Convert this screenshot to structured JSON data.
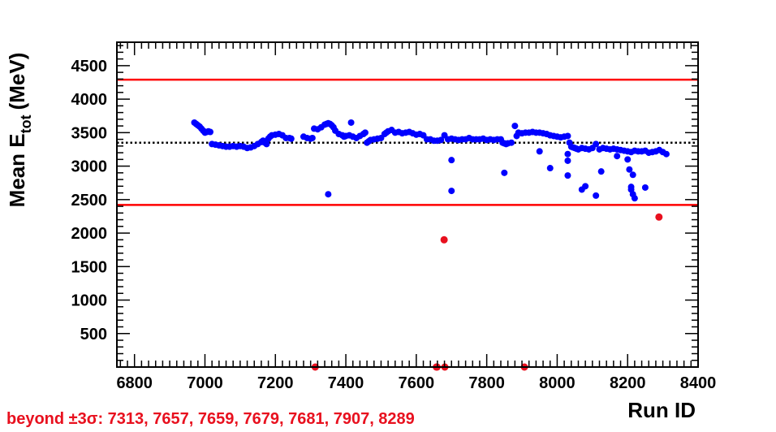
{
  "chart_data": {
    "type": "scatter",
    "title": "",
    "xlabel": "Run ID",
    "ylabel_main": "Mean E",
    "ylabel_sub": "tot",
    "ylabel_unit": "(MeV)",
    "xlim": [
      6750,
      8400
    ],
    "ylim": [
      0,
      4850
    ],
    "x_ticks": [
      6800,
      7000,
      7200,
      7400,
      7600,
      7800,
      8000,
      8200,
      8400
    ],
    "y_ticks": [
      500,
      1000,
      1500,
      2000,
      2500,
      3000,
      3500,
      4000,
      4500
    ],
    "grid": false,
    "colors": {
      "inlier": "#0000ff",
      "outlier": "#e8101e",
      "band": "#ff0000",
      "mean": "#000000",
      "footnote": "#e8101e"
    },
    "reference_lines": [
      {
        "kind": "upper-3sigma",
        "y": 4290,
        "style": "solid"
      },
      {
        "kind": "mean",
        "y": 3350,
        "style": "dotted"
      },
      {
        "kind": "lower-3sigma",
        "y": 2420,
        "style": "solid"
      }
    ],
    "series": [
      {
        "points": [
          [
            6970,
            3650
          ],
          [
            6975,
            3630
          ],
          [
            6980,
            3610
          ],
          [
            6985,
            3590
          ],
          [
            6990,
            3560
          ],
          [
            6995,
            3530
          ],
          [
            7000,
            3500
          ],
          [
            7005,
            3510
          ],
          [
            7010,
            3520
          ],
          [
            7015,
            3510
          ],
          [
            7020,
            3330
          ],
          [
            7030,
            3320
          ],
          [
            7040,
            3310
          ],
          [
            7050,
            3300
          ],
          [
            7060,
            3290
          ],
          [
            7070,
            3290
          ],
          [
            7080,
            3300
          ],
          [
            7090,
            3290
          ],
          [
            7100,
            3300
          ],
          [
            7110,
            3290
          ],
          [
            7120,
            3270
          ],
          [
            7130,
            3280
          ],
          [
            7140,
            3300
          ],
          [
            7150,
            3330
          ],
          [
            7160,
            3360
          ],
          [
            7165,
            3380
          ],
          [
            7170,
            3350
          ],
          [
            7175,
            3330
          ],
          [
            7180,
            3410
          ],
          [
            7185,
            3440
          ],
          [
            7190,
            3460
          ],
          [
            7200,
            3470
          ],
          [
            7210,
            3480
          ],
          [
            7220,
            3460
          ],
          [
            7230,
            3420
          ],
          [
            7240,
            3420
          ],
          [
            7245,
            3410
          ],
          [
            7280,
            3440
          ],
          [
            7290,
            3420
          ],
          [
            7300,
            3410
          ],
          [
            7305,
            3420
          ],
          [
            7310,
            3560
          ],
          [
            7320,
            3550
          ],
          [
            7330,
            3580
          ],
          [
            7340,
            3620
          ],
          [
            7345,
            3630
          ],
          [
            7350,
            3640
          ],
          [
            7355,
            3630
          ],
          [
            7360,
            3610
          ],
          [
            7365,
            3580
          ],
          [
            7370,
            3530
          ],
          [
            7380,
            3480
          ],
          [
            7390,
            3460
          ],
          [
            7395,
            3440
          ],
          [
            7400,
            3450
          ],
          [
            7410,
            3460
          ],
          [
            7415,
            3650
          ],
          [
            7420,
            3440
          ],
          [
            7430,
            3420
          ],
          [
            7440,
            3450
          ],
          [
            7450,
            3480
          ],
          [
            7455,
            3500
          ],
          [
            7460,
            3350
          ],
          [
            7465,
            3370
          ],
          [
            7470,
            3390
          ],
          [
            7480,
            3400
          ],
          [
            7490,
            3410
          ],
          [
            7500,
            3420
          ],
          [
            7510,
            3480
          ],
          [
            7515,
            3500
          ],
          [
            7520,
            3520
          ],
          [
            7530,
            3540
          ],
          [
            7540,
            3500
          ],
          [
            7550,
            3510
          ],
          [
            7560,
            3490
          ],
          [
            7570,
            3500
          ],
          [
            7580,
            3510
          ],
          [
            7590,
            3490
          ],
          [
            7600,
            3470
          ],
          [
            7610,
            3480
          ],
          [
            7620,
            3460
          ],
          [
            7630,
            3400
          ],
          [
            7640,
            3400
          ],
          [
            7650,
            3380
          ],
          [
            7660,
            3380
          ],
          [
            7670,
            3390
          ],
          [
            7680,
            3460
          ],
          [
            7690,
            3400
          ],
          [
            7700,
            3410
          ],
          [
            7710,
            3400
          ],
          [
            7720,
            3390
          ],
          [
            7730,
            3400
          ],
          [
            7740,
            3400
          ],
          [
            7750,
            3420
          ],
          [
            7760,
            3400
          ],
          [
            7770,
            3400
          ],
          [
            7780,
            3400
          ],
          [
            7790,
            3410
          ],
          [
            7800,
            3390
          ],
          [
            7810,
            3400
          ],
          [
            7820,
            3390
          ],
          [
            7830,
            3400
          ],
          [
            7840,
            3400
          ],
          [
            7845,
            3350
          ],
          [
            7850,
            3340
          ],
          [
            7855,
            3330
          ],
          [
            7860,
            3340
          ],
          [
            7870,
            3350
          ],
          [
            7880,
            3600
          ],
          [
            7885,
            3450
          ],
          [
            7890,
            3500
          ],
          [
            7900,
            3490
          ],
          [
            7910,
            3500
          ],
          [
            7920,
            3500
          ],
          [
            7930,
            3510
          ],
          [
            7940,
            3500
          ],
          [
            7950,
            3500
          ],
          [
            7960,
            3490
          ],
          [
            7970,
            3480
          ],
          [
            7980,
            3460
          ],
          [
            7990,
            3450
          ],
          [
            8000,
            3440
          ],
          [
            8010,
            3430
          ],
          [
            8020,
            3440
          ],
          [
            8030,
            3450
          ],
          [
            8035,
            3350
          ],
          [
            8040,
            3290
          ],
          [
            8045,
            3280
          ],
          [
            8050,
            3270
          ],
          [
            8055,
            3260
          ],
          [
            8060,
            3250
          ],
          [
            8070,
            3270
          ],
          [
            8080,
            3260
          ],
          [
            8090,
            3250
          ],
          [
            8100,
            3270
          ],
          [
            8110,
            3330
          ],
          [
            8120,
            3250
          ],
          [
            8130,
            3270
          ],
          [
            8140,
            3260
          ],
          [
            8150,
            3250
          ],
          [
            8160,
            3260
          ],
          [
            8170,
            3250
          ],
          [
            8180,
            3240
          ],
          [
            8190,
            3230
          ],
          [
            8200,
            3220
          ],
          [
            8210,
            3210
          ],
          [
            8220,
            3230
          ],
          [
            8230,
            3220
          ],
          [
            8240,
            3220
          ],
          [
            8250,
            3230
          ],
          [
            8260,
            3200
          ],
          [
            8270,
            3210
          ],
          [
            8280,
            3220
          ],
          [
            8290,
            3240
          ],
          [
            8300,
            3210
          ],
          [
            8310,
            3180
          ],
          [
            7350,
            2580
          ],
          [
            7700,
            3090
          ],
          [
            7700,
            2630
          ],
          [
            7850,
            2900
          ],
          [
            7950,
            3220
          ],
          [
            7980,
            2970
          ],
          [
            8030,
            3180
          ],
          [
            8030,
            3080
          ],
          [
            8030,
            2860
          ],
          [
            8070,
            2650
          ],
          [
            8080,
            2700
          ],
          [
            8110,
            2560
          ],
          [
            8125,
            2920
          ],
          [
            8170,
            3150
          ],
          [
            8200,
            3100
          ],
          [
            8205,
            2950
          ],
          [
            8210,
            2690
          ],
          [
            8210,
            2650
          ],
          [
            8215,
            2870
          ],
          [
            8215,
            2580
          ],
          [
            8220,
            2520
          ],
          [
            8250,
            2680
          ]
        ]
      },
      {
        "points": [
          [
            7313,
            0
          ],
          [
            7657,
            0
          ],
          [
            7659,
            0
          ],
          [
            7679,
            1900
          ],
          [
            7681,
            0
          ],
          [
            7907,
            0
          ],
          [
            8289,
            2240
          ]
        ]
      }
    ],
    "footnote": "beyond  ±3σ: 7313, 7657, 7659, 7679, 7681, 7907, 8289"
  }
}
